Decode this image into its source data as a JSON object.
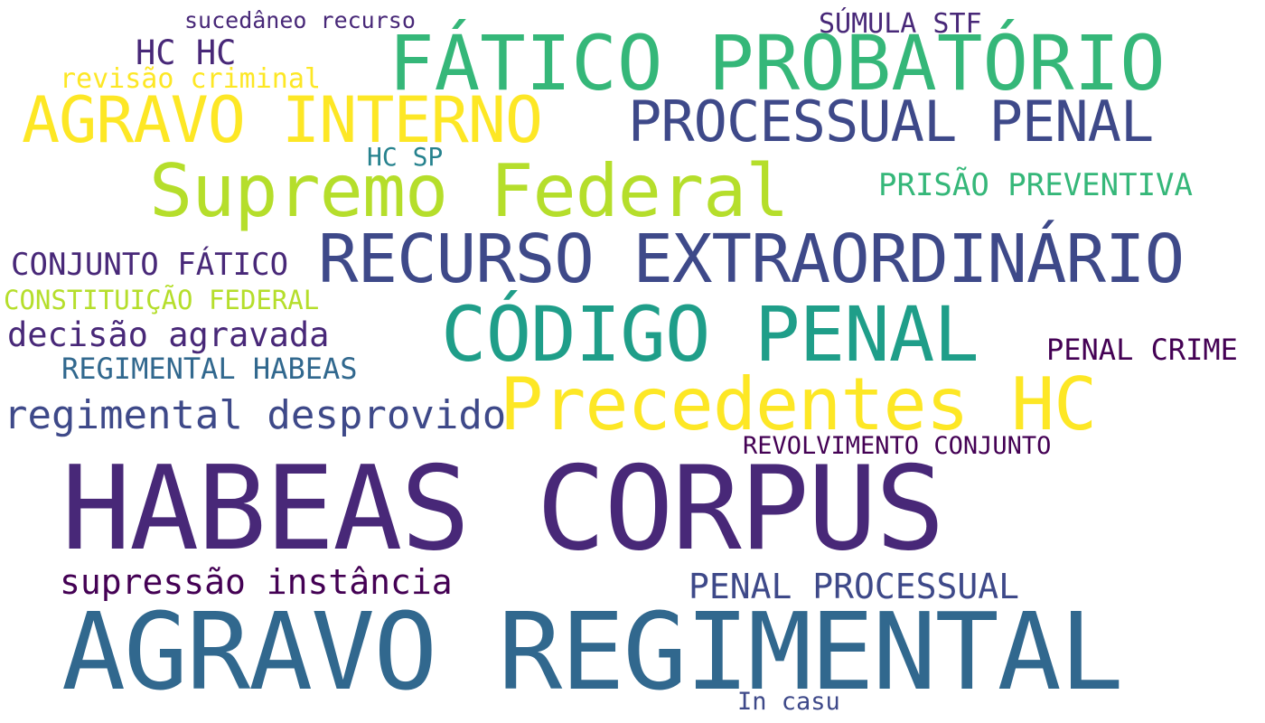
{
  "words": {
    "habeas_corpus": "HABEAS CORPUS",
    "agravo_regimental": "AGRAVO REGIMENTAL",
    "fatico_probatorio": "FÁTICO PROBATÓRIO",
    "recurso_extraordinario": "RECURSO EXTRAORDINÁRIO",
    "agravo_interno": "AGRAVO INTERNO",
    "processual_penal": "PROCESSUAL PENAL",
    "supremo_federal": "Supremo Federal",
    "codigo_penal": "CÓDIGO PENAL",
    "precedentes_hc": "Precedentes HC",
    "sumula_stf": "SÚMULA STF",
    "sucedaneo_recurso": "sucedâneo recurso",
    "hc_hc": "HC HC",
    "revisao_criminal": "revisão criminal",
    "hc_sp": "HC SP",
    "prisao_preventiva": "PRISÃO PREVENTIVA",
    "conjunto_fatico": "CONJUNTO FÁTICO",
    "constituicao_federal": "CONSTITUIÇÃO FEDERAL",
    "decisao_agravada": "decisão agravada",
    "regimental_habeas": "REGIMENTAL HABEAS",
    "penal_crime": "PENAL CRIME",
    "regimental_desprovido": "regimental desprovido",
    "revolvimento_conjunto": "REVOLVIMENTO CONJUNTO",
    "supressao_instancia": "supressão instância",
    "penal_processual": "PENAL PROCESSUAL",
    "in_casu": "In casu"
  },
  "colors": {
    "dark_purple": "#440154",
    "purple": "#482878",
    "indigo": "#3e4989",
    "blue": "#31688e",
    "teal": "#26828e",
    "sea": "#1f9e89",
    "green": "#35b779",
    "light_green": "#6ece58",
    "lime": "#b5de2b",
    "yellow": "#fde725"
  }
}
